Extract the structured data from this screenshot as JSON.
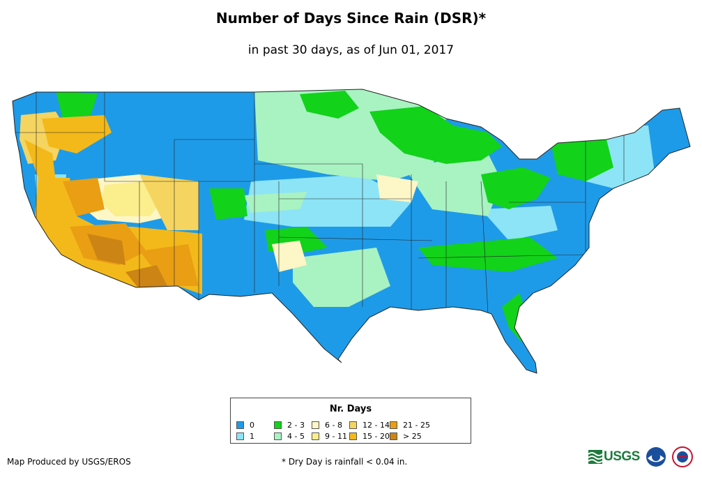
{
  "title": "Number of Days Since Rain (DSR)*",
  "subtitle": "in past 30 days, as of Jun 01, 2017",
  "legend": {
    "title": "Nr. Days",
    "items": [
      {
        "label": "0",
        "color": "#1e9be8"
      },
      {
        "label": "1",
        "color": "#8de4f6"
      },
      {
        "label": "2 - 3",
        "color": "#12d21a"
      },
      {
        "label": "4 - 5",
        "color": "#a9f2c2"
      },
      {
        "label": "6 - 8",
        "color": "#fdf6c6"
      },
      {
        "label": "9 - 11",
        "color": "#fbee8c"
      },
      {
        "label": "12 - 14",
        "color": "#f5d460"
      },
      {
        "label": "15 - 20",
        "color": "#f3b91a"
      },
      {
        "label": "21 - 25",
        "color": "#e99e14"
      },
      {
        "label": "> 25",
        "color": "#cc8514"
      }
    ]
  },
  "credit": "Map Produced by USGS/EROS",
  "footnote": "* Dry Day is rainfall < 0.04 in.",
  "logos": {
    "usgs": "USGS",
    "usgs_icon": "usgs-wave-icon",
    "noaa_icon": "noaa-icon",
    "nws_icon": "nws-icon"
  }
}
